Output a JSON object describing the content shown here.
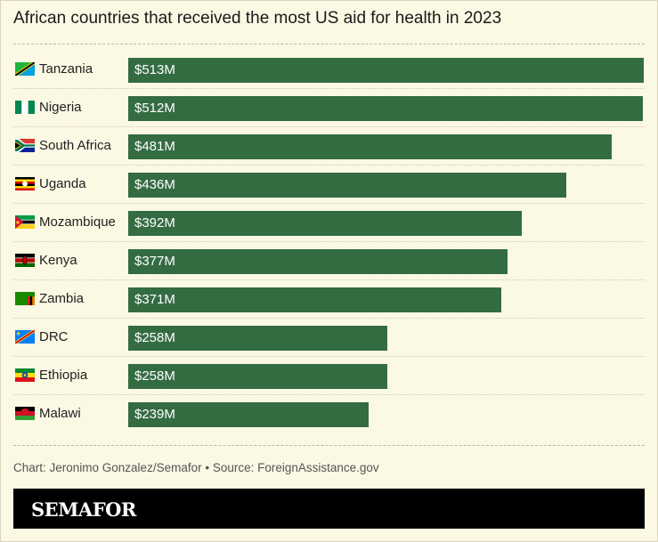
{
  "title": "African countries that received the most US aid for health in 2023",
  "source": "Chart: Jeronimo Gonzalez/Semafor • Source: ForeignAssistance.gov",
  "brand": "SEMAFOR",
  "colors": {
    "bar": "#346c42",
    "background": "#fbf8e3",
    "footer": "#000000"
  },
  "chart_data": {
    "type": "bar",
    "orientation": "horizontal",
    "title": "African countries that received the most US aid for health in 2023",
    "unit": "USD millions",
    "xlim": [
      0,
      513
    ],
    "grid": false,
    "legend": "none",
    "categories": [
      "Tanzania",
      "Nigeria",
      "South Africa",
      "Uganda",
      "Mozambique",
      "Kenya",
      "Zambia",
      "DRC",
      "Ethiopia",
      "Malawi"
    ],
    "values": [
      513,
      512,
      481,
      436,
      392,
      377,
      371,
      258,
      258,
      239
    ],
    "labels": [
      "$513M",
      "$512M",
      "$481M",
      "$436M",
      "$392M",
      "$377M",
      "$371M",
      "$258M",
      "$258M",
      "$239M"
    ],
    "flags": [
      "tanzania-flag-icon",
      "nigeria-flag-icon",
      "south-africa-flag-icon",
      "uganda-flag-icon",
      "mozambique-flag-icon",
      "kenya-flag-icon",
      "zambia-flag-icon",
      "drc-flag-icon",
      "ethiopia-flag-icon",
      "malawi-flag-icon"
    ]
  }
}
